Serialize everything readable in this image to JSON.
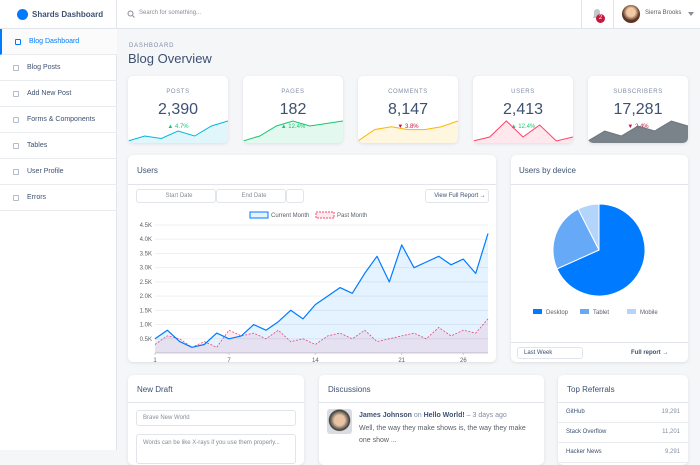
{
  "brand": "Shards Dashboard",
  "nav": [
    "Blog Dashboard",
    "Blog Posts",
    "Add New Post",
    "Forms & Components",
    "Tables",
    "User Profile",
    "Errors"
  ],
  "search_placeholder": "Search for something...",
  "notifications": "2",
  "user_name": "Sierra Brooks",
  "page_subtitle": "DASHBOARD",
  "page_title": "Blog Overview",
  "stats": [
    {
      "label": "POSTS",
      "value": "2,390",
      "change": "4.7%",
      "direction": "up",
      "color": "#00b8d8",
      "sparkline": [
        2,
        3,
        2.5,
        4,
        3,
        5,
        6
      ]
    },
    {
      "label": "PAGES",
      "value": "182",
      "change": "12.4%",
      "direction": "up",
      "color": "#17c671",
      "sparkline": [
        1,
        2,
        4,
        5,
        4,
        4.5,
        5
      ]
    },
    {
      "label": "COMMENTS",
      "value": "8,147",
      "change": "3.8%",
      "direction": "down",
      "color": "#ffb400",
      "sparkline": [
        2,
        4,
        4.5,
        4,
        4,
        4.5,
        5.5
      ]
    },
    {
      "label": "USERS",
      "value": "2,413",
      "change": "12.4%",
      "direction": "up",
      "color": "#ff4169",
      "sparkline": [
        1,
        2,
        6,
        2,
        5,
        1,
        2
      ]
    },
    {
      "label": "SUBSCRIBERS",
      "value": "17,281",
      "change": "2.4%",
      "direction": "down",
      "color": "#6c757d",
      "sparkline": [
        2,
        4,
        3,
        5,
        4,
        6,
        5
      ]
    }
  ],
  "users_card": {
    "title": "Users",
    "start_placeholder": "Start Date",
    "end_placeholder": "End Date",
    "button": "View Full Report →",
    "chart": {
      "type": "line",
      "x": [
        1,
        2,
        3,
        4,
        5,
        6,
        7,
        8,
        9,
        10,
        11,
        12,
        13,
        14,
        15,
        16,
        17,
        18,
        19,
        20,
        21,
        22,
        23,
        24,
        25,
        26,
        27,
        28
      ],
      "xlim": [
        1,
        28
      ],
      "xticks": [
        1,
        7,
        14,
        21,
        26
      ],
      "ylim": [
        0,
        4500
      ],
      "yticks": [
        {
          "value": 500,
          "label": "0.5K"
        },
        {
          "value": 1000,
          "label": "1.0K"
        },
        {
          "value": 1500,
          "label": "1.5K"
        },
        {
          "value": 2000,
          "label": "2.0K"
        },
        {
          "value": 2500,
          "label": "2.5K"
        },
        {
          "value": 3000,
          "label": "3.0K"
        },
        {
          "value": 3500,
          "label": "3.5K"
        },
        {
          "value": 4000,
          "label": "4.0K"
        },
        {
          "value": 4500,
          "label": "4.5K"
        }
      ],
      "series": [
        {
          "name": "Current Month",
          "color": "#007bff",
          "values": [
            500,
            800,
            400,
            200,
            300,
            700,
            500,
            600,
            1000,
            800,
            1100,
            1500,
            1200,
            1700,
            2000,
            2300,
            2100,
            2800,
            3400,
            2500,
            3800,
            3000,
            3200,
            3400,
            3100,
            3300,
            2800,
            4200
          ]
        },
        {
          "name": "Past Month",
          "color": "#ff4169",
          "values": [
            300,
            600,
            500,
            200,
            400,
            200,
            800,
            600,
            700,
            500,
            800,
            400,
            500,
            300,
            600,
            700,
            500,
            800,
            400,
            500,
            600,
            700,
            500,
            900,
            600,
            800,
            700,
            1200
          ]
        }
      ]
    }
  },
  "device_card": {
    "title": "Users by device",
    "select": "Last Week",
    "link": "Full report →",
    "chart": {
      "type": "pie",
      "categories": [
        "Desktop",
        "Tablet",
        "Mobile"
      ],
      "values": [
        68.3,
        24.2,
        7.5
      ],
      "colors": [
        "#007bff",
        "#66a9f7",
        "#b3d4fb"
      ]
    }
  },
  "draft_card": {
    "title": "New Draft",
    "title_placeholder": "Brave New World",
    "body_placeholder": "Words can be like X-rays if you use them properly..."
  },
  "discussions_card": {
    "title": "Discussions",
    "items": [
      {
        "author": "James Johnson",
        "connector": "on",
        "post": "Hello World!",
        "time": "– 3 days ago",
        "text": "Well, the way they make shows is, the way they make one show ..."
      }
    ]
  },
  "referrals_card": {
    "title": "Top Referrals",
    "rows": [
      {
        "name": "GitHub",
        "value": "19,291"
      },
      {
        "name": "Stack Overflow",
        "value": "11,201"
      },
      {
        "name": "Hacker News",
        "value": "9,291"
      }
    ]
  }
}
